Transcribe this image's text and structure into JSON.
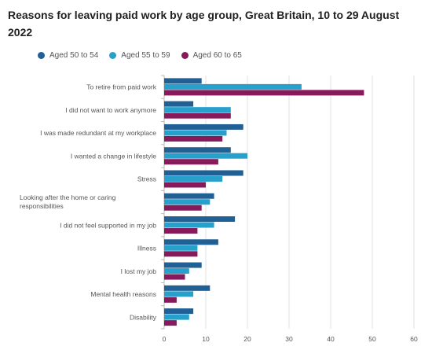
{
  "chart_data": {
    "type": "bar",
    "orientation": "horizontal",
    "title": "Reasons for leaving paid work by age group, Great Britain, 10 to 29 August 2022",
    "categories": [
      "To retire from paid work",
      "I did not want to work anymore",
      "I was made redundant at my workplace",
      "I wanted a change in lifestyle",
      "Stress",
      "Looking after the home or caring responsibilities",
      "I did not feel supported in my job",
      "Illness",
      "I lost my job",
      "Mental health reasons",
      "Disability"
    ],
    "series": [
      {
        "name": "Aged 50 to 54",
        "color": "#206095",
        "values": [
          9,
          7,
          19,
          16,
          19,
          12,
          17,
          13,
          9,
          11,
          7
        ]
      },
      {
        "name": "Aged 55 to 59",
        "color": "#27a0cc",
        "values": [
          33,
          16,
          15,
          20,
          14,
          11,
          12,
          8,
          6,
          7,
          6
        ]
      },
      {
        "name": "Aged 60 to 65",
        "color": "#871a5b",
        "values": [
          48,
          16,
          14,
          13,
          10,
          9,
          8,
          8,
          5,
          3,
          3
        ]
      }
    ],
    "xlim": [
      0,
      60
    ],
    "xticks": [
      0,
      10,
      20,
      30,
      40,
      50,
      60
    ],
    "grid": true,
    "legend": "top-left"
  }
}
